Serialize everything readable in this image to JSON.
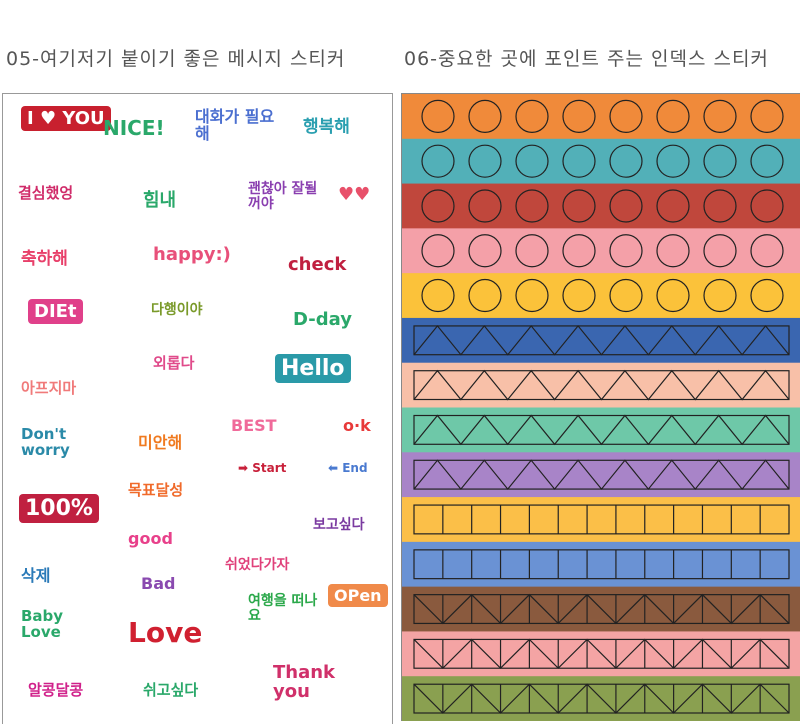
{
  "captions": {
    "left": "05-여기저기 붙이기 좋은 메시지 스티커",
    "right": "06-중요한 곳에 포인트 주는 인덱스 스티커"
  },
  "stickers": [
    {
      "text": "I ♥ YOU",
      "color": "#c8202e",
      "boxed": true
    },
    {
      "text": "NICE!",
      "color": "#2aa86a"
    },
    {
      "text": "대화가 필요해",
      "color": "#4b6fd0"
    },
    {
      "text": "행복해",
      "color": "#2a9fb0"
    },
    {
      "text": "결심했엉",
      "color": "#d02c6a"
    },
    {
      "text": "힘내",
      "color": "#2aa86a"
    },
    {
      "text": "괜찮아 잘될꺼야",
      "color": "#8a3fb0"
    },
    {
      "text": "♥♥",
      "color": "#e8506a"
    },
    {
      "text": "축하해",
      "color": "#e8406a"
    },
    {
      "text": "happy:)",
      "color": "#e8507a"
    },
    {
      "text": "check",
      "color": "#c02040"
    },
    {
      "text": "DIEt",
      "color": "#e0408a",
      "boxed": true
    },
    {
      "text": "다행이야",
      "color": "#7a9a2a"
    },
    {
      "text": "D-day",
      "color": "#2aa86a"
    },
    {
      "text": "외롭다",
      "color": "#e04a8a"
    },
    {
      "text": "Hello",
      "color": "#2a9aa8",
      "boxed": true
    },
    {
      "text": "아프지마",
      "color": "#f07a7a"
    },
    {
      "text": "Don't worry",
      "color": "#2a8aa8"
    },
    {
      "text": "미안해",
      "color": "#f07a20"
    },
    {
      "text": "BEST",
      "color": "#f06a9a"
    },
    {
      "text": "o·k",
      "color": "#e83a3a"
    },
    {
      "text": "➡ Start",
      "color": "#c8203a"
    },
    {
      "text": "⬅ End",
      "color": "#4a7ad0"
    },
    {
      "text": "목표달성",
      "color": "#f06a2a"
    },
    {
      "text": "100%",
      "color": "#c02040",
      "boxed": true
    },
    {
      "text": "good",
      "color": "#e8408a"
    },
    {
      "text": "쉬었다가자",
      "color": "#e0407a"
    },
    {
      "text": "보고싶다",
      "color": "#7a3aa0"
    },
    {
      "text": "삭제",
      "color": "#2a7ab8"
    },
    {
      "text": "Bad",
      "color": "#8a4ab0"
    },
    {
      "text": "여행을 떠나요",
      "color": "#2aa84a"
    },
    {
      "text": "OPen",
      "color": "#f08a4a",
      "boxed": true
    },
    {
      "text": "Baby Love",
      "color": "#2aa86a"
    },
    {
      "text": "Love",
      "color": "#d02030"
    },
    {
      "text": "알콩달콩",
      "color": "#d0208a"
    },
    {
      "text": "쉬고싶다",
      "color": "#2aa86a"
    },
    {
      "text": "Thank you",
      "color": "#d0306a"
    }
  ],
  "index_strips": [
    {
      "color": "#f08a3a",
      "pattern": "circles"
    },
    {
      "color": "#52b0b8",
      "pattern": "circles"
    },
    {
      "color": "#c0473c",
      "pattern": "circles"
    },
    {
      "color": "#f4a0a8",
      "pattern": "circles"
    },
    {
      "color": "#fbc23a",
      "pattern": "circles"
    },
    {
      "color": "#3a66b0",
      "pattern": "triangles"
    },
    {
      "color": "#f8c0a8",
      "pattern": "triangles"
    },
    {
      "color": "#6ec8a8",
      "pattern": "triangles"
    },
    {
      "color": "#a884c8",
      "pattern": "triangles"
    },
    {
      "color": "#fbbf48",
      "pattern": "squares"
    },
    {
      "color": "#6a92d4",
      "pattern": "squares"
    },
    {
      "color": "#8a5a3e",
      "pattern": "truss"
    },
    {
      "color": "#f4a4a4",
      "pattern": "truss"
    },
    {
      "color": "#8aa050",
      "pattern": "truss"
    }
  ]
}
